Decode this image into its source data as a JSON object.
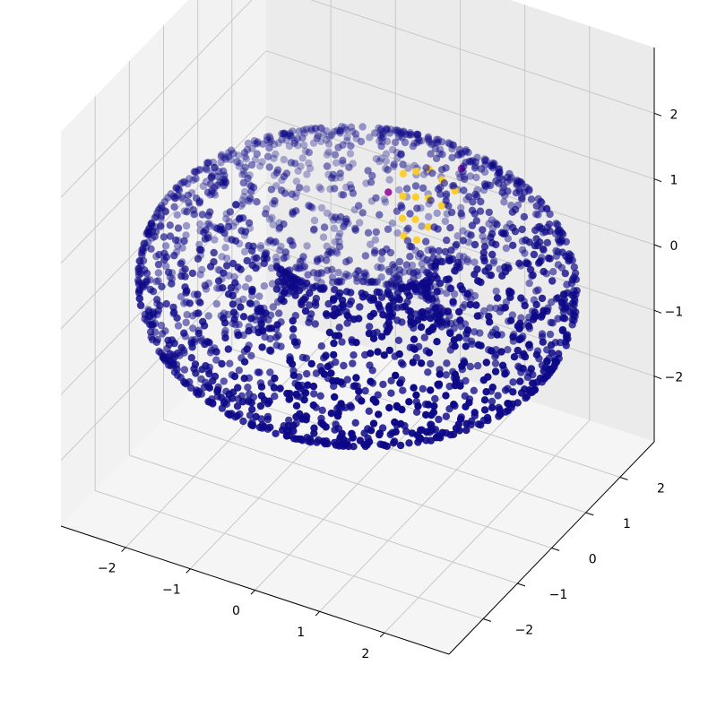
{
  "chart_data": {
    "type": "scatter",
    "projection": "3d",
    "shape": "torus",
    "title": "",
    "xlabel": "",
    "ylabel": "",
    "zlabel": "",
    "xlim": [
      -3,
      3
    ],
    "ylim": [
      -3,
      3
    ],
    "zlim": [
      -3,
      3
    ],
    "grid": true,
    "legend": "none",
    "colormap": "plasma",
    "background_color": "#0d0887",
    "highlight_color": "#fcce25",
    "highlight_edge_color": "#9c179e",
    "torus": {
      "major_radius": 2,
      "minor_radius": 1
    },
    "num_background_points": 2200,
    "highlight_points": [
      {
        "x": -0.3,
        "y": 1.9,
        "z": 0.6
      },
      {
        "x": -0.1,
        "y": 1.9,
        "z": 0.7
      },
      {
        "x": 0.1,
        "y": 1.9,
        "z": 0.8
      },
      {
        "x": 0.3,
        "y": 1.9,
        "z": 0.7
      },
      {
        "x": 0.5,
        "y": 1.9,
        "z": 0.6
      },
      {
        "x": -0.2,
        "y": 1.7,
        "z": 0.4
      },
      {
        "x": 0.0,
        "y": 1.7,
        "z": 0.45
      },
      {
        "x": 0.2,
        "y": 1.7,
        "z": 0.5
      },
      {
        "x": 0.4,
        "y": 1.7,
        "z": 0.45
      },
      {
        "x": -0.1,
        "y": 1.5,
        "z": 0.2
      },
      {
        "x": 0.1,
        "y": 1.5,
        "z": 0.25
      },
      {
        "x": 0.3,
        "y": 1.5,
        "z": 0.2
      },
      {
        "x": 0.0,
        "y": 1.35,
        "z": 0.05
      },
      {
        "x": 0.2,
        "y": 1.35,
        "z": 0.05
      }
    ],
    "highlight_edge_points": [
      {
        "x": -0.45,
        "y": 1.75,
        "z": 0.35
      },
      {
        "x": 0.55,
        "y": 2.0,
        "z": 0.9
      }
    ],
    "x_ticks": [
      {
        "value": -2,
        "label": "−2"
      },
      {
        "value": -1,
        "label": "−1"
      },
      {
        "value": 0,
        "label": "0"
      },
      {
        "value": 1,
        "label": "1"
      },
      {
        "value": 2,
        "label": "2"
      }
    ],
    "y_ticks": [
      {
        "value": -2,
        "label": "−2"
      },
      {
        "value": -1,
        "label": "−1"
      },
      {
        "value": 0,
        "label": "0"
      },
      {
        "value": 1,
        "label": "1"
      },
      {
        "value": 2,
        "label": "2"
      }
    ],
    "z_ticks": [
      {
        "value": -2,
        "label": "−2"
      },
      {
        "value": -1,
        "label": "−1"
      },
      {
        "value": 0,
        "label": "0"
      },
      {
        "value": 1,
        "label": "1"
      },
      {
        "value": 2,
        "label": "2"
      }
    ]
  }
}
